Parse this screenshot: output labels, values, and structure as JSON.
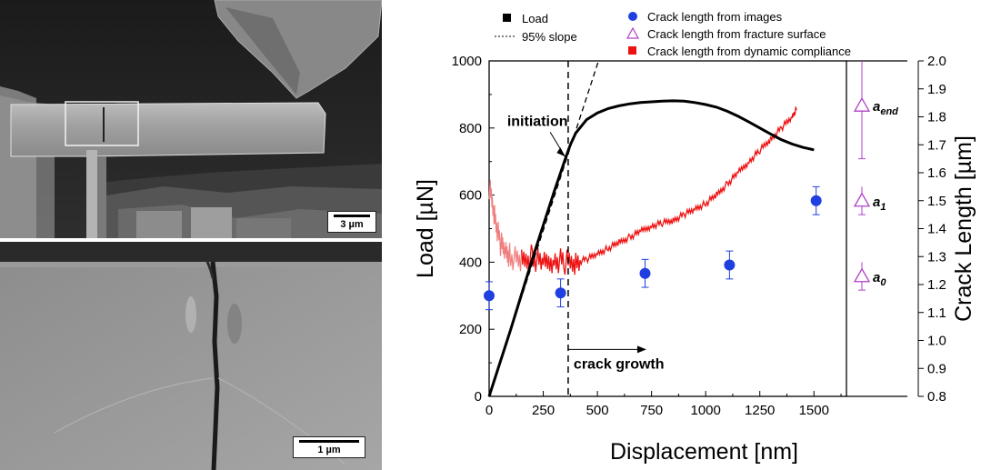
{
  "sem_images": {
    "top": {
      "scale_label": "3 µm"
    },
    "bottom": {
      "scale_label": "1 µm"
    }
  },
  "chart_data": {
    "type": "line",
    "xlabel": "Displacement [nm]",
    "ylabel": "Load [µN]",
    "y2label": "Crack Length [µm]",
    "xlim": [
      0,
      1650
    ],
    "ylim": [
      0,
      1000
    ],
    "y2lim": [
      0.8,
      2.0
    ],
    "x_ticks": [
      0,
      250,
      500,
      750,
      1000,
      1250,
      1500
    ],
    "y_ticks": [
      0,
      200,
      400,
      600,
      800,
      1000
    ],
    "y2_ticks": [
      0.8,
      0.9,
      1.0,
      1.1,
      1.2,
      1.3,
      1.4,
      1.5,
      1.6,
      1.7,
      1.8,
      1.9,
      2.0
    ],
    "legend": [
      {
        "label": "Load",
        "symbol": "square",
        "color": "#000000"
      },
      {
        "label": "95% slope",
        "symbol": "dash",
        "color": "#000000"
      },
      {
        "label": "Crack length from images",
        "symbol": "circle",
        "color": "#1f3fe0"
      },
      {
        "label": "Crack length from fracture surface",
        "symbol": "triangle",
        "color": "#b040c8"
      },
      {
        "label": "Crack length from dynamic compliance",
        "symbol": "square",
        "color": "#ee1111"
      }
    ],
    "series": [
      {
        "name": "Load",
        "color": "#000000",
        "x": [
          0,
          50,
          100,
          150,
          200,
          250,
          300,
          350,
          375,
          400,
          450,
          500,
          550,
          600,
          650,
          700,
          750,
          800,
          850,
          900,
          950,
          1000,
          1050,
          1100,
          1150,
          1200,
          1250,
          1300,
          1350,
          1400,
          1450,
          1500
        ],
        "y": [
          0,
          100,
          200,
          305,
          410,
          510,
          610,
          705,
          750,
          785,
          825,
          845,
          858,
          866,
          872,
          876,
          878,
          880,
          881,
          880,
          876,
          870,
          862,
          850,
          835,
          818,
          800,
          782,
          765,
          752,
          742,
          735
        ]
      },
      {
        "name": "95% slope",
        "color": "#000000",
        "x": [
          0,
          505
        ],
        "y": [
          0,
          1000
        ]
      },
      {
        "name": "Crack length from dynamic compliance",
        "color": "#ee1111",
        "axis": "right",
        "x": [
          0,
          25,
          50,
          75,
          100,
          150,
          200,
          250,
          300,
          350,
          400,
          450,
          500,
          550,
          600,
          650,
          700,
          750,
          800,
          850,
          900,
          950,
          1000,
          1050,
          1100,
          1150,
          1200,
          1250,
          1300,
          1350,
          1400,
          1420
        ],
        "y": [
          1.55,
          1.45,
          1.35,
          1.32,
          1.3,
          1.28,
          1.3,
          1.27,
          1.29,
          1.28,
          1.28,
          1.29,
          1.31,
          1.33,
          1.35,
          1.37,
          1.39,
          1.41,
          1.42,
          1.43,
          1.45,
          1.47,
          1.49,
          1.52,
          1.56,
          1.6,
          1.64,
          1.68,
          1.72,
          1.76,
          1.8,
          1.83
        ]
      },
      {
        "name": "Crack length from images",
        "color": "#1f3fe0",
        "axis": "right",
        "x": [
          0,
          330,
          720,
          1110,
          1510
        ],
        "y": [
          1.16,
          1.17,
          1.24,
          1.27,
          1.5
        ],
        "err": [
          0.05,
          0.05,
          0.05,
          0.05,
          0.05
        ]
      },
      {
        "name": "Crack length from fracture surface",
        "color": "#b040c8",
        "axis": "right",
        "labels": [
          "a_end",
          "a_1",
          "a_0"
        ],
        "y": [
          1.84,
          1.5,
          1.23
        ],
        "err": [
          0.19,
          0.05,
          0.05
        ]
      }
    ],
    "annotations": [
      {
        "text": "initiation",
        "x": 240,
        "y": 820
      },
      {
        "text": "crack growth",
        "x": 380,
        "y": 105
      }
    ],
    "vline_x": 365
  }
}
